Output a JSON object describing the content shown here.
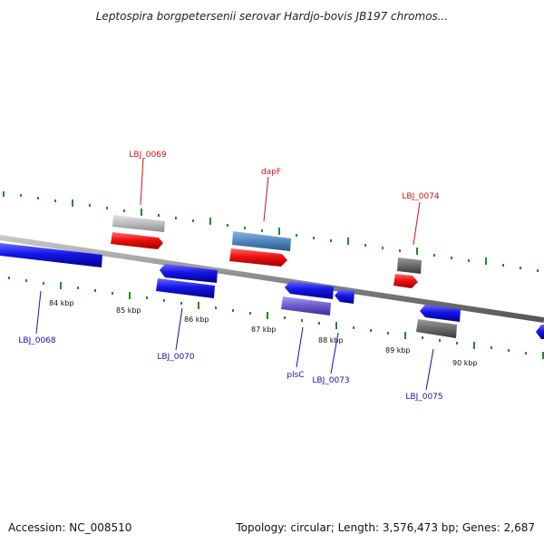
{
  "title": "Leptospira borgpetersenii serovar Hardjo-bovis JB197 chromos...",
  "footer": {
    "accession": "Accession: NC_008510",
    "summary": "Topology: circular; Length: 3,576,473 bp; Genes: 2,687"
  },
  "colors": {
    "backbone": "#8a8a8a",
    "tick": "#228b22",
    "forward_gene": "#ee1111",
    "reverse_gene": "#1515e8",
    "forward_label": "#cc1111",
    "reverse_label": "#1111aa",
    "grey_gene": "#bcbcbc",
    "dark_grey_gene": "#6a6a6a",
    "steel_gene": "#4f86bf",
    "purple_gene": "#6a5acd"
  },
  "scale_labels": [
    "84 kbp",
    "85 kbp",
    "86 kbp",
    "87 kbp",
    "88 kbp",
    "89 kbp",
    "90 kbp"
  ],
  "gene_labels": {
    "forward": [
      "LBJ_0069",
      "dapF",
      "LBJ_0074"
    ],
    "reverse": [
      "LBJ_0068",
      "LBJ_0070",
      "plsC",
      "LBJ_0073",
      "LBJ_0075"
    ]
  }
}
